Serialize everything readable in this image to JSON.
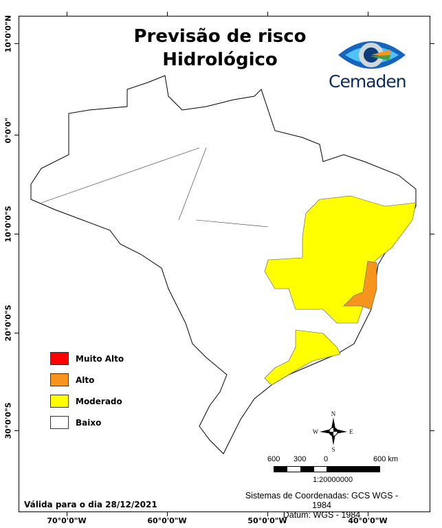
{
  "title": {
    "line1": "Previsão de risco",
    "line2": "Hidrológico"
  },
  "logo": {
    "name": "Cemaden"
  },
  "axes": {
    "lat_labels": [
      "10°0'0\"N",
      "0°0'0\"",
      "10°0'0\"S",
      "20°0'0\"S",
      "30°0'0\"S"
    ],
    "lon_labels": [
      "70°0'0\"W",
      "60°0'0\"W",
      "50°0'0\"W",
      "40°0'0\"W"
    ]
  },
  "legend": [
    {
      "label": "Muito Alto",
      "color": "#ff0000"
    },
    {
      "label": "Alto",
      "color": "#f7941d"
    },
    {
      "label": "Moderado",
      "color": "#ffff00"
    },
    {
      "label": "Baixo",
      "color": "#ffffff"
    }
  ],
  "compass": {
    "n": "N",
    "s": "S",
    "e": "E",
    "w": "W"
  },
  "scale_bar": {
    "labels": [
      "600",
      "300",
      "0",
      "600 km"
    ],
    "ratio": "1:20000000"
  },
  "footer": {
    "valid_prefix": "Válida para o dia",
    "valid_date": "28/12/2021",
    "coord_system": "Sistemas de Coordenadas: GCS WGS - 1984",
    "datum": "Datum: WGS - 1984"
  }
}
